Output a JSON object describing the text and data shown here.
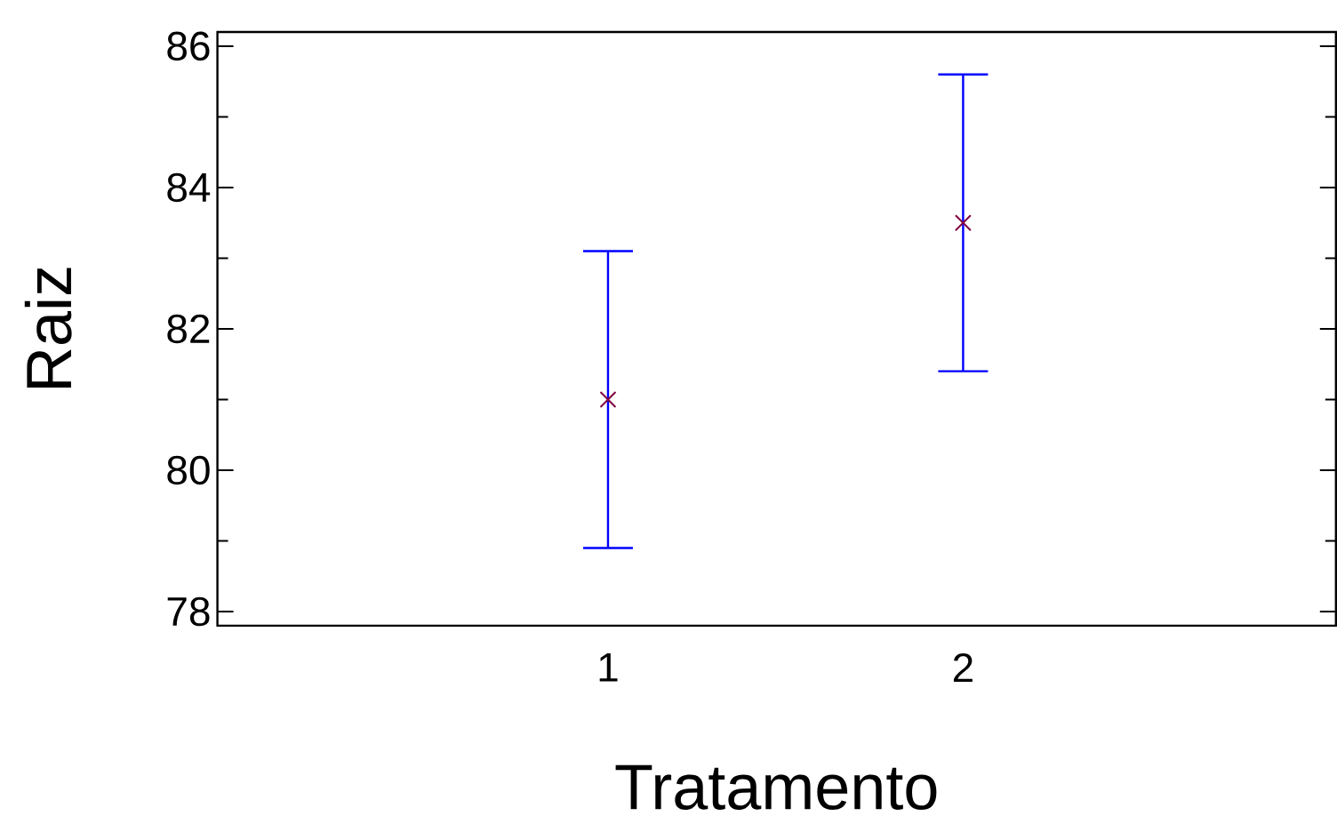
{
  "chart_data": {
    "type": "scatter",
    "xlabel": "Tratamento",
    "ylabel": "Raiz",
    "categories": [
      "1",
      "2"
    ],
    "series": [
      {
        "color": "#800040",
        "values": [
          81.0,
          83.5
        ],
        "errors": [
          2.1,
          2.1
        ]
      }
    ],
    "marker": "cross",
    "ylim": [
      77.8,
      86.2
    ],
    "yticks": [
      78,
      80,
      82,
      84,
      86
    ]
  }
}
